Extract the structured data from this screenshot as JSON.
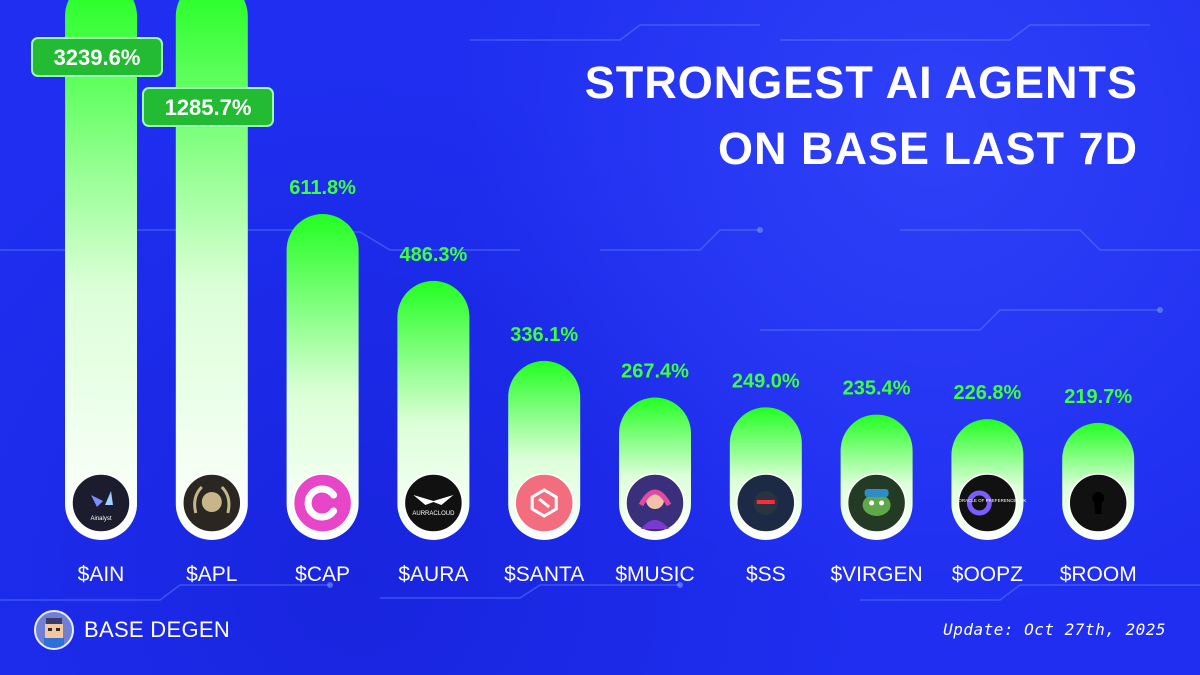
{
  "title": {
    "line1": "STRONGEST AI AGENTS",
    "line2": "ON BASE LAST 7D"
  },
  "chart_data": {
    "type": "bar",
    "title": "STRONGEST AI AGENTS ON BASE LAST 7D",
    "categories": [
      "$AIN",
      "$APL",
      "$CAP",
      "$AURA",
      "$SANTA",
      "$MUSIC",
      "$SS",
      "$VIRGEN",
      "$OOPZ",
      "$ROOM"
    ],
    "values": [
      3239.6,
      1285.7,
      611.8,
      486.3,
      336.1,
      267.4,
      249.0,
      235.4,
      226.8,
      219.7
    ],
    "value_labels": [
      "3239.6%",
      "1285.7%",
      "611.8%",
      "486.3%",
      "336.1%",
      "267.4%",
      "249.0%",
      "235.4%",
      "226.8%",
      "219.7%"
    ],
    "unit": "%",
    "xlabel": "",
    "ylabel": "",
    "grid": false,
    "note": "Top two bars extend beyond the top of the frame; their value labels are drawn in boxed badges.",
    "icons": [
      {
        "name": "ainalyst-logo-icon",
        "text": "Ainalyst",
        "bg": "#1b1d2e"
      },
      {
        "name": "laurel-head-logo-icon",
        "text": "",
        "bg": "#2a2722"
      },
      {
        "name": "cap-logo-icon",
        "text": "",
        "bg": "#e846c8"
      },
      {
        "name": "auracloud-logo-icon",
        "text": "AURRACLOUD",
        "bg": "#111111"
      },
      {
        "name": "santa-logo-icon",
        "text": "",
        "bg": "#f26d7d"
      },
      {
        "name": "music-avatar-icon",
        "text": "",
        "bg": "#3a2f7a"
      },
      {
        "name": "ss-helmet-icon",
        "text": "",
        "bg": "#1d2a45"
      },
      {
        "name": "virgen-frog-icon",
        "text": "",
        "bg": "#233a24"
      },
      {
        "name": "oopz-oracle-icon",
        "text": "ORACLE OF PREFERENCES ZK",
        "bg": "#111111"
      },
      {
        "name": "room-keyhole-icon",
        "text": "",
        "bg": "#111111"
      }
    ],
    "colors": {
      "bar_top": "#22ff22",
      "bar_bottom": "#ffffff",
      "label": "#3dff3d",
      "badge_bg": "#22bb33",
      "badge_border": "#9dffb0",
      "category_text": "#ffffff"
    }
  },
  "brand": {
    "name": "BASE DEGEN"
  },
  "update_text": "Update: Oct 27th, 2025"
}
